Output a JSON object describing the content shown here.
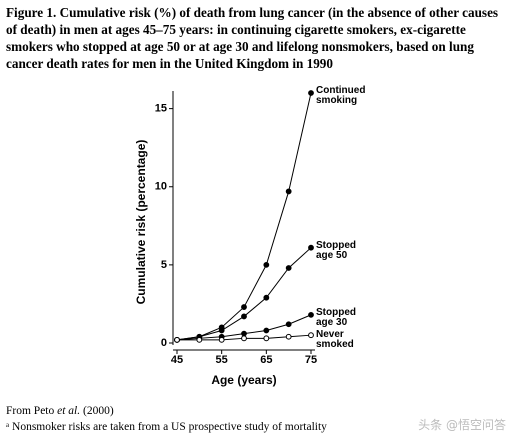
{
  "chart_data": {
    "type": "line",
    "title": "Figure 1. Cumulative risk (%) of death from lung cancer (in the absence of other causes of death) in men at ages 45–75 years: in continuing cigarette smokers, ex-cigarette smokers who stopped at age 50 or at age 30 and lifelong nonsmokers, based on lung cancer death rates for men in the United Kingdom in 1990",
    "x_label": "Age (years)",
    "y_label": "Cumulative risk (percentage)",
    "x": [
      45,
      50,
      55,
      60,
      65,
      70,
      75
    ],
    "xlim": [
      45,
      75
    ],
    "xticks": [
      45,
      55,
      65,
      75
    ],
    "ylim": [
      0,
      16
    ],
    "yticks": [
      0,
      5,
      10,
      15
    ],
    "series": [
      {
        "name": "Continued smoking",
        "color": "#000",
        "marker": "filled",
        "values": [
          0.2,
          0.4,
          1.0,
          2.3,
          5.0,
          9.7,
          16.0
        ]
      },
      {
        "name": "Stopped age 50",
        "color": "#000",
        "marker": "filled",
        "values": [
          0.2,
          0.4,
          0.8,
          1.7,
          2.9,
          4.8,
          6.1
        ]
      },
      {
        "name": "Stopped age 30",
        "color": "#000",
        "marker": "filled",
        "values": [
          0.2,
          0.3,
          0.4,
          0.6,
          0.8,
          1.2,
          1.8
        ]
      },
      {
        "name": "Never smoked",
        "color": "#000",
        "marker": "open",
        "values": [
          0.2,
          0.2,
          0.2,
          0.3,
          0.3,
          0.4,
          0.5
        ]
      }
    ],
    "source": [
      "From Peto ",
      "et al.",
      " (2000)"
    ],
    "footnote": "ᵃ Nonsmoker risks are taken from a US prospective study of mortality",
    "watermark": "头条 @悟空问答"
  }
}
